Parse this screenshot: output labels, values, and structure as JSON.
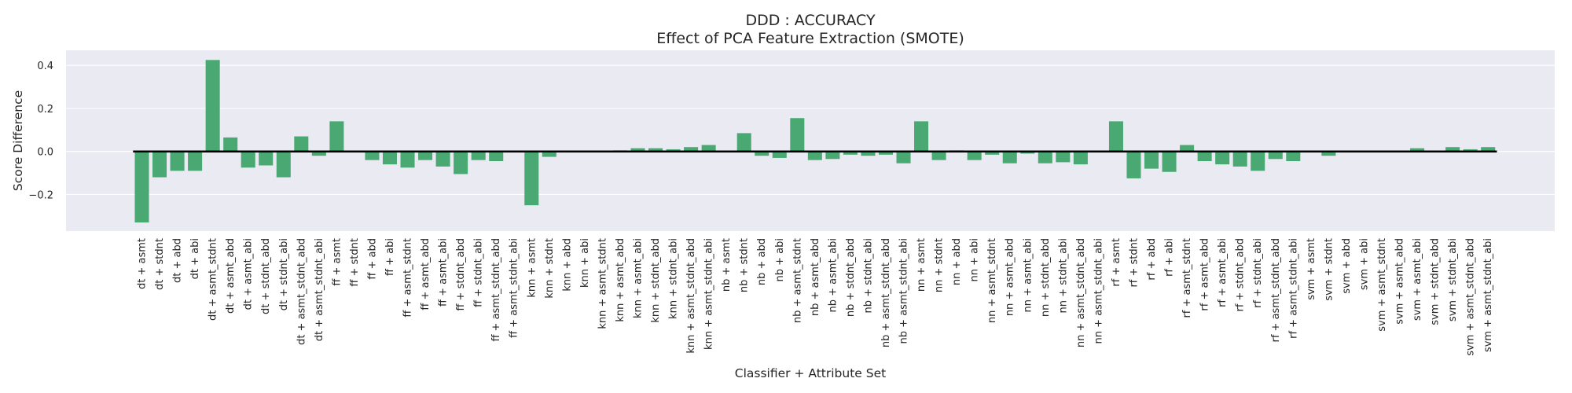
{
  "chart_data": {
    "type": "bar",
    "title": "DDD : ACCURACY",
    "subtitle": "Effect of PCA Feature Extraction (SMOTE)",
    "xlabel": "Classifier + Attribute Set",
    "ylabel": "Score Difference",
    "ylim": [
      -0.37,
      0.47
    ],
    "yticks": [
      -0.2,
      0.0,
      0.2,
      0.4
    ],
    "ytick_labels": [
      "−0.2",
      "0.0",
      "0.2",
      "0.4"
    ],
    "grid": true,
    "bar_color": "#4aa872",
    "background_color": "#eaeaf2",
    "zero_line_color": "#000000",
    "categories": [
      "dt + asmt",
      "dt + stdnt",
      "dt + abd",
      "dt + abi",
      "dt + asmt_stdnt",
      "dt + asmt_abd",
      "dt + asmt_abi",
      "dt + stdnt_abd",
      "dt + stdnt_abi",
      "dt + asmt_stdnt_abd",
      "dt + asmt_stdnt_abi",
      "ff + asmt",
      "ff + stdnt",
      "ff + abd",
      "ff + abi",
      "ff + asmt_stdnt",
      "ff + asmt_abd",
      "ff + asmt_abi",
      "ff + stdnt_abd",
      "ff + stdnt_abi",
      "ff + asmt_stdnt_abd",
      "ff + asmt_stdnt_abi",
      "knn + asmt",
      "knn + stdnt",
      "knn + abd",
      "knn + abi",
      "knn + asmt_stdnt",
      "knn + asmt_abd",
      "knn + asmt_abi",
      "knn + stdnt_abd",
      "knn + stdnt_abi",
      "knn + asmt_stdnt_abd",
      "knn + asmt_stdnt_abi",
      "nb + asmt",
      "nb + stdnt",
      "nb + abd",
      "nb + abi",
      "nb + asmt_stdnt",
      "nb + asmt_abd",
      "nb + asmt_abi",
      "nb + stdnt_abd",
      "nb + stdnt_abi",
      "nb + asmt_stdnt_abd",
      "nb + asmt_stdnt_abi",
      "nn + asmt",
      "nn + stdnt",
      "nn + abd",
      "nn + abi",
      "nn + asmt_stdnt",
      "nn + asmt_abd",
      "nn + asmt_abi",
      "nn + stdnt_abd",
      "nn + stdnt_abi",
      "nn + asmt_stdnt_abd",
      "nn + asmt_stdnt_abi",
      "rf + asmt",
      "rf + stdnt",
      "rf + abd",
      "rf + abi",
      "rf + asmt_stdnt",
      "rf + asmt_abd",
      "rf + asmt_abi",
      "rf + stdnt_abd",
      "rf + stdnt_abi",
      "rf + asmt_stdnt_abd",
      "rf + asmt_stdnt_abi",
      "svm + asmt",
      "svm + stdnt",
      "svm + abd",
      "svm + abi",
      "svm + asmt_stdnt",
      "svm + asmt_abd",
      "svm + asmt_abi",
      "svm + stdnt_abd",
      "svm + stdnt_abi",
      "svm + asmt_stdnt_abd",
      "svm + asmt_stdnt_abi"
    ],
    "values": [
      -0.33,
      -0.12,
      -0.09,
      -0.09,
      0.425,
      0.065,
      -0.075,
      -0.065,
      -0.12,
      0.07,
      -0.02,
      0.14,
      0.0,
      -0.04,
      -0.06,
      -0.075,
      -0.04,
      -0.07,
      -0.105,
      -0.04,
      -0.045,
      0.0,
      -0.25,
      -0.025,
      0.0,
      0.0,
      0.0,
      0.005,
      0.015,
      0.015,
      0.01,
      0.02,
      0.03,
      0.0,
      0.085,
      -0.02,
      -0.03,
      0.155,
      -0.04,
      -0.035,
      -0.015,
      -0.02,
      -0.015,
      -0.055,
      0.14,
      -0.04,
      0.005,
      -0.04,
      -0.015,
      -0.055,
      -0.01,
      -0.055,
      -0.05,
      -0.06,
      0.0,
      0.14,
      -0.125,
      -0.08,
      -0.095,
      0.03,
      -0.045,
      -0.06,
      -0.07,
      -0.09,
      -0.035,
      -0.045,
      0.0,
      -0.02,
      0.0,
      0.0,
      0.0,
      0.0,
      0.015,
      0.0,
      0.02,
      0.01,
      0.02
    ]
  }
}
